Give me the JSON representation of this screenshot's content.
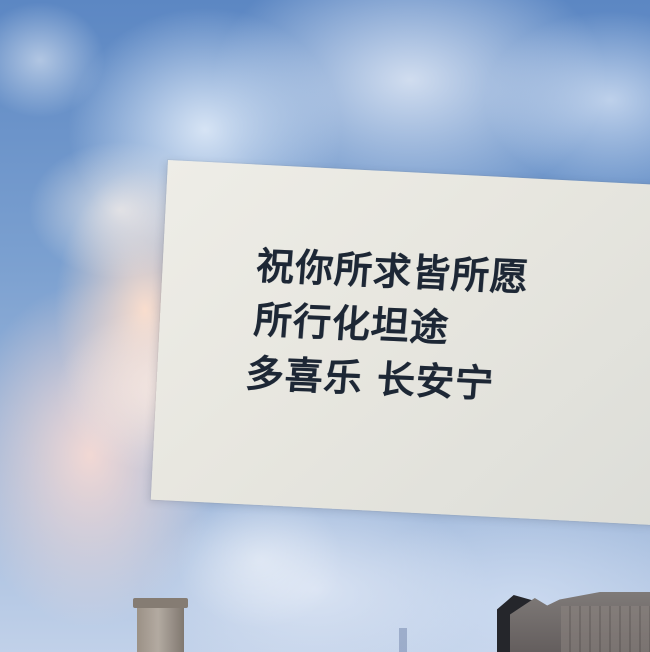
{
  "photo": {
    "note_lines": [
      "祝你所求皆所愿",
      "所行化坦途",
      "多喜乐 长安宁"
    ]
  }
}
